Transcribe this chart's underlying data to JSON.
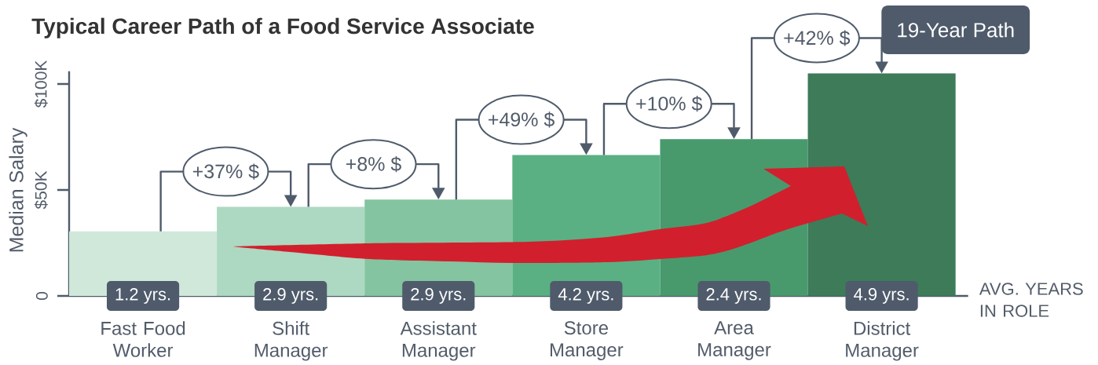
{
  "chart_data": {
    "type": "bar",
    "title": "Typical Career Path of a Food Service Associate",
    "xlabel": "AVG. YEARS IN ROLE",
    "ylabel": "Median Salary",
    "categories": [
      "Fast Food Worker",
      "Shift Manager",
      "Assistant Manager",
      "Store Manager",
      "Area Manager",
      "District Manager"
    ],
    "values": [
      30.5,
      42,
      45.5,
      66.5,
      74,
      105
    ],
    "colors": [
      "#cfe8da",
      "#add8c1",
      "#84c4a0",
      "#5ab083",
      "#489a6d",
      "#3d7b59"
    ],
    "ylim": [
      0,
      106
    ],
    "yticks": [
      0,
      {
        "value": 50,
        "label": "$50K"
      },
      {
        "value": 100,
        "label": "$100K"
      }
    ],
    "annotations": [
      "19-Year Path",
      {
        "text": "+37% $",
        "x": "Shift Manager",
        "y": 42
      },
      {
        "text": "+8% $",
        "x": "Assistant Manager",
        "y": 45.5
      },
      {
        "text": "+49% $",
        "x": "Store Manager",
        "y": 66.5
      },
      {
        "text": "+10% $",
        "x": "Area Manager",
        "y": 74
      },
      {
        "text": "+42% $",
        "x": "District Manager",
        "y": 105
      },
      {
        "text": "1.2 yrs.",
        "x": "Fast Food Worker",
        "y": 0
      },
      {
        "text": "2.9 yrs.",
        "x": "Shift Manager",
        "y": 0
      },
      {
        "text": "2.9 yrs.",
        "x": "Assistant Manager",
        "y": 0
      },
      {
        "text": "4.2 yrs.",
        "x": "Store Manager",
        "y": 0
      },
      {
        "text": "2.4 yrs.",
        "x": "Area Manager",
        "y": 0
      },
      {
        "text": "4.9 yrs.",
        "x": "District Manager",
        "y": 0
      }
    ]
  }
}
